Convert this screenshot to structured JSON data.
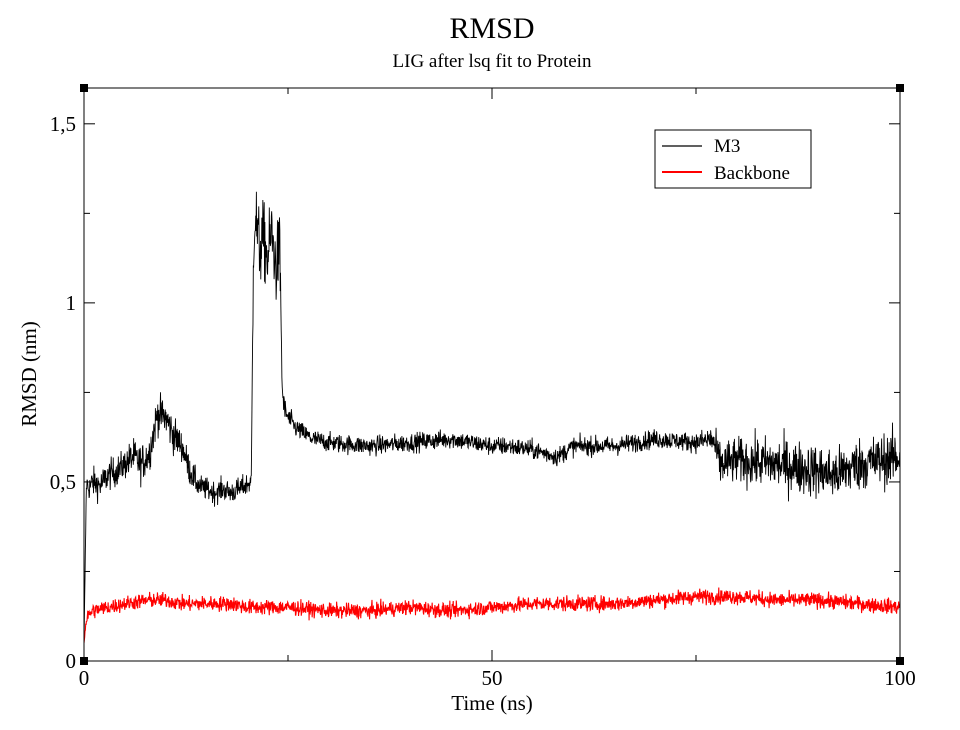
{
  "chart_data": {
    "type": "line",
    "title": "RMSD",
    "subtitle": "LIG after lsq fit to Protein",
    "xlabel": "Time (ns)",
    "ylabel": "RMSD (nm)",
    "xlim": [
      0,
      100
    ],
    "ylim": [
      0,
      1.6
    ],
    "xticks": [
      {
        "value": 0,
        "label": "0"
      },
      {
        "value": 50,
        "label": "50"
      },
      {
        "value": 100,
        "label": "100"
      }
    ],
    "yticks": [
      {
        "value": 0,
        "label": "0"
      },
      {
        "value": 0.5,
        "label": "0,5"
      },
      {
        "value": 1,
        "label": "1"
      },
      {
        "value": 1.5,
        "label": "1,5"
      }
    ],
    "x_minor_step": 25,
    "y_minor_step": 0.25,
    "grid": false,
    "legend_position": "top-right",
    "series": [
      {
        "name": "M3",
        "color": "#000000",
        "x": [
          0,
          0.3,
          0.6,
          1,
          2,
          3,
          4,
          5,
          6,
          7,
          8,
          9,
          10,
          11,
          12,
          13,
          14,
          15,
          16,
          17,
          18,
          19,
          20.5,
          20.8,
          21,
          21.5,
          22,
          22.5,
          23,
          23.5,
          24,
          24.3,
          24.6,
          25,
          26,
          28,
          30,
          35,
          40,
          45,
          50,
          52,
          55,
          58,
          60,
          65,
          70,
          75,
          77,
          78,
          80,
          85,
          90,
          92,
          95,
          100
        ],
        "y": [
          0.05,
          0.5,
          0.48,
          0.5,
          0.49,
          0.52,
          0.53,
          0.55,
          0.57,
          0.55,
          0.58,
          0.69,
          0.68,
          0.63,
          0.6,
          0.53,
          0.49,
          0.48,
          0.47,
          0.48,
          0.47,
          0.48,
          0.5,
          1.2,
          1.25,
          1.15,
          1.18,
          1.12,
          1.2,
          1.1,
          1.15,
          0.75,
          0.7,
          0.68,
          0.65,
          0.62,
          0.61,
          0.6,
          0.61,
          0.62,
          0.6,
          0.6,
          0.59,
          0.57,
          0.6,
          0.6,
          0.62,
          0.61,
          0.62,
          0.55,
          0.56,
          0.55,
          0.53,
          0.52,
          0.55,
          0.57
        ],
        "noise": [
          0,
          0.03,
          0.03,
          0.04,
          0.04,
          0.04,
          0.04,
          0.04,
          0.05,
          0.05,
          0.05,
          0.05,
          0.05,
          0.05,
          0.04,
          0.04,
          0.03,
          0.03,
          0.03,
          0.03,
          0.03,
          0.03,
          0.03,
          0.1,
          0.1,
          0.1,
          0.1,
          0.1,
          0.1,
          0.1,
          0.1,
          0.04,
          0.03,
          0.03,
          0.025,
          0.025,
          0.025,
          0.025,
          0.025,
          0.025,
          0.025,
          0.025,
          0.025,
          0.025,
          0.025,
          0.025,
          0.025,
          0.025,
          0.04,
          0.06,
          0.06,
          0.07,
          0.07,
          0.07,
          0.07,
          0.07
        ]
      },
      {
        "name": "Backbone",
        "color": "#ff0000",
        "x": [
          0,
          0.3,
          1,
          3,
          5,
          8,
          10,
          12,
          15,
          18,
          20,
          25,
          30,
          35,
          40,
          45,
          50,
          55,
          60,
          65,
          70,
          75,
          80,
          85,
          90,
          95,
          100
        ],
        "y": [
          0.05,
          0.12,
          0.14,
          0.15,
          0.16,
          0.17,
          0.17,
          0.16,
          0.16,
          0.16,
          0.15,
          0.15,
          0.14,
          0.14,
          0.15,
          0.14,
          0.15,
          0.16,
          0.16,
          0.16,
          0.17,
          0.18,
          0.18,
          0.17,
          0.17,
          0.16,
          0.15
        ],
        "noise": [
          0,
          0.02,
          0.02,
          0.02,
          0.02,
          0.02,
          0.02,
          0.02,
          0.02,
          0.02,
          0.02,
          0.02,
          0.02,
          0.02,
          0.02,
          0.02,
          0.02,
          0.02,
          0.02,
          0.02,
          0.02,
          0.02,
          0.02,
          0.02,
          0.02,
          0.02,
          0.02
        ]
      }
    ]
  }
}
